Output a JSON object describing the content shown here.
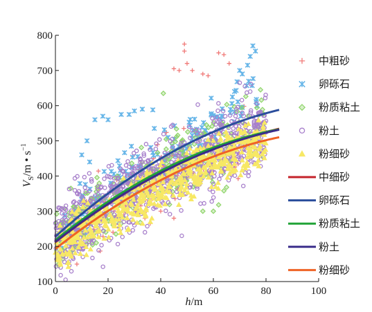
{
  "chart_data": {
    "type": "scatter",
    "xlabel": "h/m",
    "xlabel_parts": {
      "var": "h",
      "unit": "/m"
    },
    "ylabel_parts": {
      "var": "V",
      "sub": "S",
      "unit": "/m • s",
      "sup": "−1"
    },
    "xlim": [
      0,
      100
    ],
    "ylim": [
      100,
      800
    ],
    "xticks": [
      0,
      20,
      40,
      60,
      80,
      100
    ],
    "yticks": [
      100,
      200,
      300,
      400,
      500,
      600,
      700,
      800
    ],
    "grid": false,
    "legend_position": "right",
    "scatter_series": [
      {
        "name": "中粗砂",
        "marker": "plus",
        "color": "#f07a78",
        "x_range": [
          8,
          76
        ],
        "a": 196,
        "b": 5.6,
        "c": 0.0168,
        "spread": 45,
        "count": 130,
        "points": [
          [
            49,
            775
          ],
          [
            49,
            755
          ],
          [
            50,
            720
          ],
          [
            62,
            750
          ],
          [
            64,
            745
          ],
          [
            66,
            720
          ],
          [
            45,
            705
          ],
          [
            47,
            700
          ],
          [
            52,
            700
          ],
          [
            56,
            690
          ],
          [
            58,
            685
          ],
          [
            34,
            280
          ],
          [
            36,
            265
          ],
          [
            40,
            300
          ],
          [
            45,
            280
          ]
        ]
      },
      {
        "name": "卵砾石",
        "marker": "x",
        "color": "#66b5e8",
        "x_range": [
          2,
          77
        ],
        "a": 228,
        "b": 6.4,
        "c": 0.019,
        "spread": 40,
        "count": 170,
        "points": [
          [
            75,
            770
          ],
          [
            76,
            755
          ],
          [
            74,
            740
          ],
          [
            73,
            715
          ],
          [
            70,
            700
          ],
          [
            71,
            690
          ],
          [
            69,
            668
          ],
          [
            12,
            500
          ],
          [
            15,
            560
          ],
          [
            18,
            570
          ],
          [
            20,
            560
          ],
          [
            25,
            575
          ],
          [
            28,
            575
          ],
          [
            30,
            585
          ],
          [
            33,
            590
          ],
          [
            37,
            588
          ],
          [
            10,
            460
          ],
          [
            13,
            440
          ]
        ]
      },
      {
        "name": "粉质粘土",
        "marker": "diamond",
        "color": "#8fd46a",
        "x_range": [
          0,
          80
        ],
        "a": 215,
        "b": 5.5,
        "c": 0.0153,
        "spread": 48,
        "count": 350,
        "points": [
          [
            41,
            635
          ],
          [
            56,
            300
          ],
          [
            62,
            318
          ],
          [
            64,
            358
          ],
          [
            65,
            368
          ],
          [
            60,
            300
          ],
          [
            54,
            388
          ],
          [
            25,
            265
          ],
          [
            23,
            235
          ]
        ]
      },
      {
        "name": "粉土",
        "marker": "circle",
        "color": "#a77fcb",
        "x_range": [
          0,
          80
        ],
        "a": 212,
        "b": 5.2,
        "c": 0.0155,
        "spread": 55,
        "count": 900,
        "points": [
          [
            2,
            118
          ],
          [
            2,
            140
          ],
          [
            4,
            170
          ],
          [
            48,
            230
          ],
          [
            30,
            260
          ],
          [
            34,
            240
          ],
          [
            70,
            665
          ],
          [
            72,
            655
          ],
          [
            74,
            640
          ]
        ]
      },
      {
        "name": "粉细砂",
        "marker": "triangle",
        "color": "#f7e865",
        "x_range": [
          0,
          80
        ],
        "a": 190,
        "b": 5.0,
        "c": 0.014,
        "spread": 35,
        "count": 600,
        "points": []
      }
    ],
    "fit_series": [
      {
        "name": "中细砂",
        "color": "#c4222a",
        "x_range": [
          0,
          85
        ],
        "a": 212,
        "b": 5.9,
        "c": 0.0248
      },
      {
        "name": "卵砾石",
        "color": "#2a4d9c",
        "x_range": [
          0,
          85
        ],
        "a": 228,
        "b": 6.7,
        "c": 0.029
      },
      {
        "name": "粉质粘土",
        "color": "#21a337",
        "x_range": [
          0,
          85
        ],
        "a": 218,
        "b": 6.0,
        "c": 0.027
      },
      {
        "name": "粉土",
        "color": "#3a2d8a",
        "x_range": [
          0,
          85
        ],
        "a": 213,
        "b": 5.9,
        "c": 0.0253
      },
      {
        "name": "粉细砂",
        "color": "#ef6224",
        "x_range": [
          0,
          85
        ],
        "a": 193,
        "b": 5.9,
        "c": 0.0255
      }
    ]
  }
}
